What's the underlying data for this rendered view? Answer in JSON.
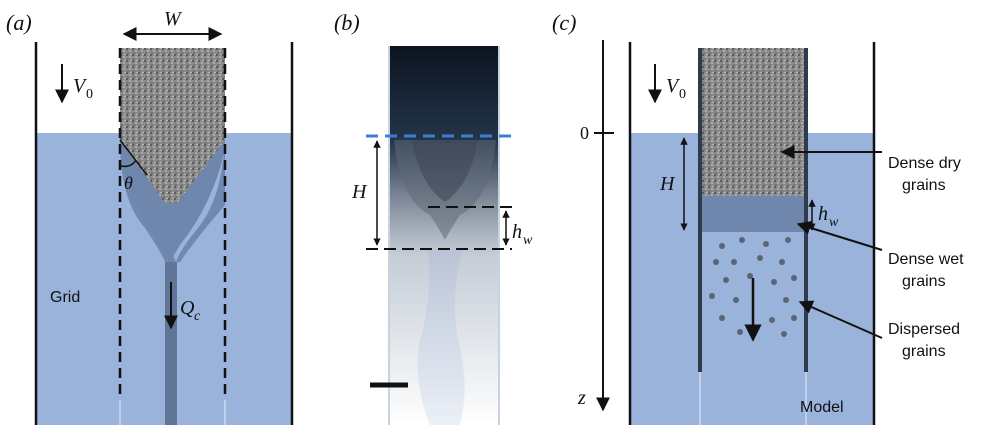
{
  "panels": {
    "a": {
      "tag": "(a)",
      "width_label": "W",
      "velocity_label": "V",
      "velocity_sub": "0",
      "angle_label": "θ",
      "grid_label": "Grid",
      "flux_label": "Q",
      "flux_sub": "c"
    },
    "b": {
      "tag": "(b)",
      "height_label": "H",
      "wet_label": "h",
      "wet_sub": "w"
    },
    "c": {
      "tag": "(c)",
      "velocity_label": "V",
      "velocity_sub": "0",
      "zero_label": "0",
      "depth_axis_label": "z",
      "height_label": "H",
      "wet_label": "h",
      "wet_sub": "w",
      "dry_label_1": "Dense dry",
      "dry_label_2": "grains",
      "wet_grains_label_1": "Dense wet",
      "wet_grains_label_2": "grains",
      "dispersed_label_1": "Dispersed",
      "dispersed_label_2": "grains",
      "model_label": "Model"
    }
  },
  "colors": {
    "water": "#9ab3db",
    "wet_grains": "#6f86ad",
    "dry_grains": "#7a7a7a",
    "line": "#111111",
    "free_surface_dash": "#3b7fd0"
  }
}
